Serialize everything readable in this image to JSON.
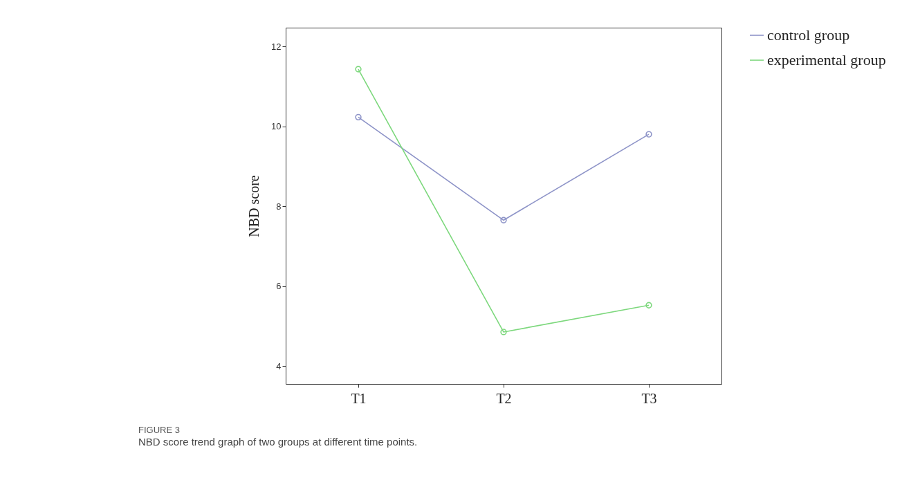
{
  "chart_data": {
    "type": "line",
    "title": "FIGURE 3",
    "subtitle": "NBD score trend graph of two groups at different time points.",
    "ylabel": "NBD score",
    "categories": [
      "T1",
      "T2",
      "T3"
    ],
    "series": [
      {
        "name": "control group",
        "color": "#8e94c8",
        "values": [
          10.23,
          7.65,
          9.8
        ]
      },
      {
        "name": "experimental group",
        "color": "#7dd87d",
        "values": [
          11.43,
          4.85,
          5.52
        ]
      }
    ],
    "ylim": [
      3.55,
      12.47
    ],
    "yticks": [
      4,
      6,
      8,
      10,
      12
    ],
    "grid": false,
    "legend": "top right",
    "marker": "circle",
    "line_style": "solid"
  }
}
